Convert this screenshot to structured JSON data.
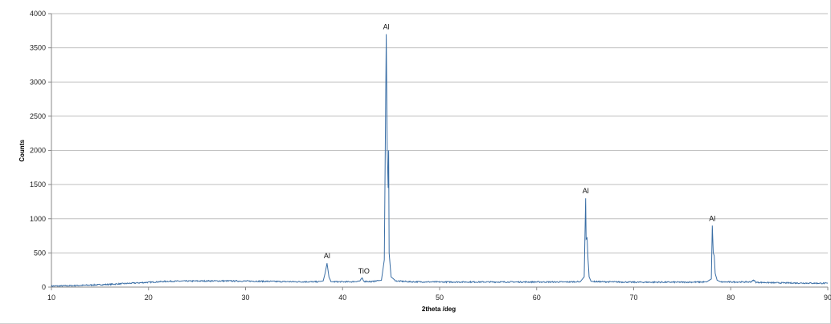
{
  "chart_data": {
    "type": "line",
    "title": "",
    "xlabel": "2theta /deg",
    "ylabel": "Counts",
    "xlim": [
      10,
      90
    ],
    "ylim": [
      0,
      4000
    ],
    "x_ticks": [
      "10",
      "20",
      "30",
      "40",
      "50",
      "60",
      "70",
      "80",
      "90"
    ],
    "y_ticks": [
      "0",
      "500",
      "1000",
      "1500",
      "2000",
      "2500",
      "3000",
      "3500",
      "4000"
    ],
    "grid": "horizontal",
    "legend": "none",
    "line_color": "#3a6ea5",
    "series": [
      {
        "x": [
          10,
          12,
          14,
          16,
          18,
          20,
          22,
          24,
          26,
          28,
          30,
          32,
          34,
          36,
          37.5,
          38.0,
          38.2,
          38.4,
          38.6,
          38.8,
          39.5,
          41,
          41.8,
          42.0,
          42.2,
          43,
          44.0,
          44.3,
          44.5,
          44.6,
          44.7,
          44.75,
          44.8,
          45.0,
          45.5,
          47,
          50,
          55,
          60,
          63,
          64.5,
          64.9,
          65.05,
          65.1,
          65.2,
          65.3,
          65.4,
          65.6,
          66,
          70,
          75,
          77.5,
          78.0,
          78.1,
          78.2,
          78.3,
          78.4,
          78.6,
          79,
          82,
          82.4,
          82.6,
          85,
          88,
          90
        ],
        "y": [
          15,
          20,
          30,
          40,
          55,
          70,
          85,
          88,
          90,
          90,
          88,
          85,
          80,
          78,
          78,
          90,
          200,
          350,
          150,
          80,
          78,
          78,
          90,
          130,
          85,
          80,
          100,
          400,
          3700,
          2000,
          1450,
          2000,
          500,
          150,
          90,
          78,
          75,
          75,
          75,
          75,
          80,
          150,
          1300,
          700,
          720,
          400,
          150,
          85,
          80,
          72,
          72,
          75,
          120,
          900,
          500,
          460,
          200,
          100,
          75,
          75,
          100,
          70,
          62,
          58,
          55
        ]
      }
    ],
    "annotations": [
      {
        "text": "Al",
        "x": 38.4,
        "y": 350
      },
      {
        "text": "TiO",
        "x": 42.2,
        "y": 130
      },
      {
        "text": "Al",
        "x": 44.5,
        "y": 3700
      },
      {
        "text": "Al",
        "x": 65.05,
        "y": 1300
      },
      {
        "text": "Al",
        "x": 78.1,
        "y": 900
      }
    ]
  }
}
